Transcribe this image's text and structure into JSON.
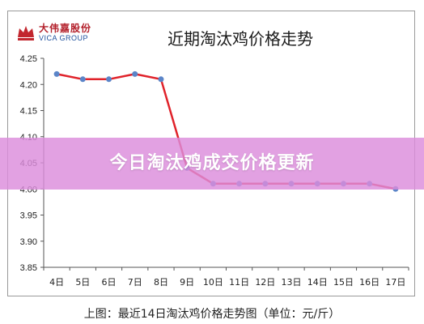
{
  "logo": {
    "name_cn": "大伟嘉股份",
    "name_en": "VICA GROUP"
  },
  "overlay_title": "今日淘汰鸡成交价格更新",
  "caption": "上图：最近14日淘汰鸡价格走势图（单位：元/斤）",
  "colors": {
    "line": "#e0222a",
    "point": "#5b85c8",
    "overlay": "#dc8cdc"
  },
  "chart_data": {
    "type": "line",
    "title": "近期淘汰鸡价格走势",
    "categories": [
      "4日",
      "5日",
      "6日",
      "7日",
      "8日",
      "9日",
      "10日",
      "11日",
      "12日",
      "13日",
      "14日",
      "15日",
      "16日",
      "17日"
    ],
    "series": [
      {
        "values": [
          4.22,
          4.21,
          4.21,
          4.22,
          4.21,
          4.04,
          4.01,
          4.01,
          4.01,
          4.01,
          4.01,
          4.01,
          4.01,
          4.0
        ]
      }
    ],
    "ylim": [
      3.85,
      4.25
    ],
    "yticks": [
      "3.85",
      "3.90",
      "3.95",
      "4.00",
      "4.05",
      "4.10",
      "4.15",
      "4.20",
      "4.25"
    ],
    "grid": false,
    "legend": "none"
  }
}
